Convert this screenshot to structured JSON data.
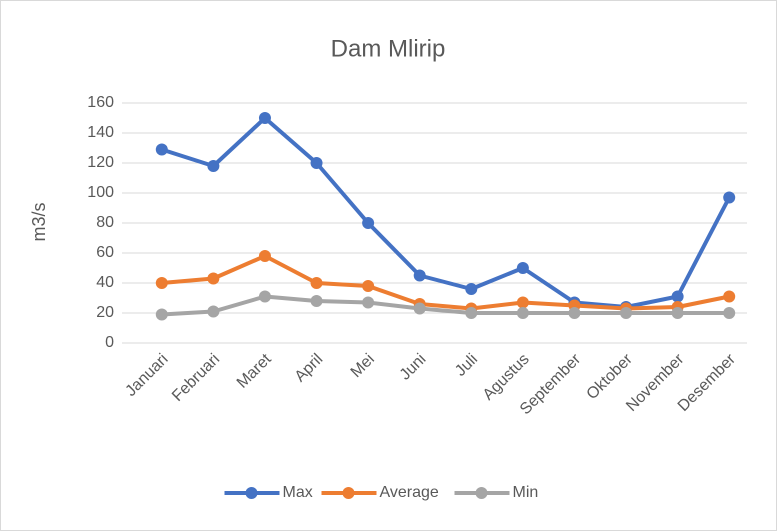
{
  "chart_data": {
    "type": "line",
    "title": "Dam Mlirip",
    "y_label": "m3/s",
    "categories": [
      "Januari",
      "Februari",
      "Maret",
      "April",
      "Mei",
      "Juni",
      "Juli",
      "Agustus",
      "September",
      "Oktober",
      "November",
      "Desember"
    ],
    "series": [
      {
        "name": "Max",
        "color": "#4472c4",
        "values": [
          129,
          118,
          150,
          120,
          80,
          45,
          36,
          50,
          27,
          24,
          31,
          97
        ]
      },
      {
        "name": "Average",
        "color": "#ed7d31",
        "values": [
          40,
          43,
          58,
          40,
          38,
          26,
          23,
          27,
          25,
          23,
          24,
          31
        ]
      },
      {
        "name": "Min",
        "color": "#a5a5a5",
        "values": [
          19,
          21,
          31,
          28,
          27,
          23,
          20,
          20,
          20,
          20,
          20,
          20
        ]
      }
    ],
    "ylim": [
      0,
      160
    ],
    "yticks": [
      0,
      20,
      40,
      60,
      80,
      100,
      120,
      140,
      160
    ],
    "grid": true,
    "legend": "bottom"
  }
}
